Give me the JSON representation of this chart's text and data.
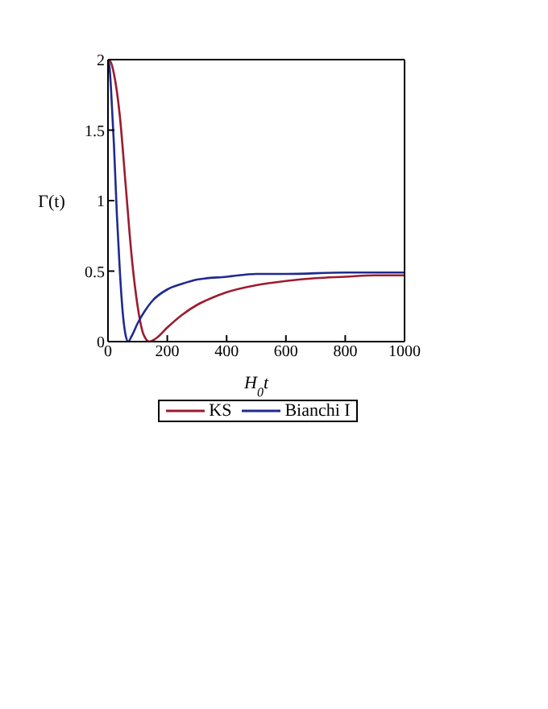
{
  "chart_data": {
    "type": "line",
    "xlabel": "H$_{0}$t",
    "ylabel": "Γ(t)",
    "xlim": [
      0,
      1000
    ],
    "xticks": [
      0,
      200,
      400,
      600,
      800,
      1000
    ],
    "ylim": [
      0,
      2
    ],
    "yticks": [
      0,
      0.5,
      1,
      1.5,
      2
    ],
    "legend": "bottom",
    "marker": "none",
    "line_style": "solid",
    "series": [
      {
        "name": "KS",
        "color": "#9b1b30",
        "x": [
          0,
          10,
          20,
          40,
          60,
          80,
          100,
          120,
          140,
          160,
          200,
          250,
          300,
          350,
          400,
          500,
          600,
          700,
          800,
          900,
          1000
        ],
        "values": [
          2,
          1.98,
          1.9,
          1.6,
          1.1,
          0.6,
          0.25,
          0.05,
          0,
          0.02,
          0.1,
          0.19,
          0.26,
          0.31,
          0.35,
          0.4,
          0.43,
          0.45,
          0.46,
          0.47,
          0.47
        ]
      },
      {
        "name": "Bianchi I",
        "color": "#1f2a8f",
        "x": [
          0,
          5,
          10,
          20,
          30,
          40,
          50,
          60,
          68,
          80,
          100,
          125,
          150,
          200,
          250,
          300,
          400,
          500,
          600,
          800,
          1000
        ],
        "values": [
          2,
          1.95,
          1.8,
          1.4,
          0.9,
          0.5,
          0.2,
          0.04,
          0,
          0.04,
          0.13,
          0.22,
          0.29,
          0.37,
          0.41,
          0.44,
          0.46,
          0.48,
          0.48,
          0.49,
          0.49
        ]
      }
    ]
  }
}
